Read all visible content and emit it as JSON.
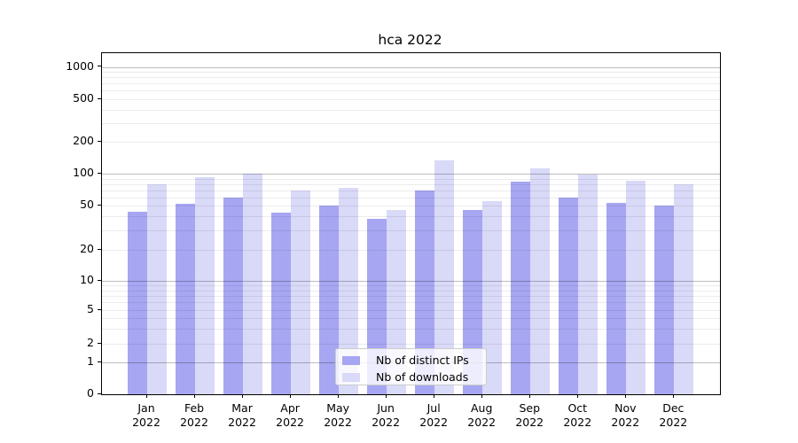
{
  "title": "hca 2022",
  "chart_data": {
    "type": "bar",
    "title": "hca 2022",
    "categories": [
      "Jan 2022",
      "Feb 2022",
      "Mar 2022",
      "Apr 2022",
      "May 2022",
      "Jun 2022",
      "Jul 2022",
      "Aug 2022",
      "Sep 2022",
      "Oct 2022",
      "Nov 2022",
      "Dec 2022"
    ],
    "series": [
      {
        "name": "Nb of distinct IPs",
        "color": "#a6a6f2",
        "values": [
          44,
          52,
          60,
          43,
          50,
          38,
          70,
          46,
          84,
          60,
          53,
          50
        ]
      },
      {
        "name": "Nb of downloads",
        "color": "#d9d9f8",
        "values": [
          79,
          92,
          100,
          70,
          73,
          46,
          134,
          55,
          113,
          99,
          85,
          79
        ]
      }
    ],
    "xlabel": "",
    "ylabel": "",
    "y_scale": "symlog",
    "y_ticks": [
      0,
      1,
      2,
      5,
      10,
      20,
      50,
      100,
      200,
      500,
      1000
    ],
    "ylim": [
      0,
      1300
    ],
    "grid": "horizontal major + minor log gridlines, drawn above bars",
    "legend": {
      "position": "lower center, inside plot",
      "labels": [
        "Nb of distinct IPs",
        "Nb of downloads"
      ]
    }
  }
}
